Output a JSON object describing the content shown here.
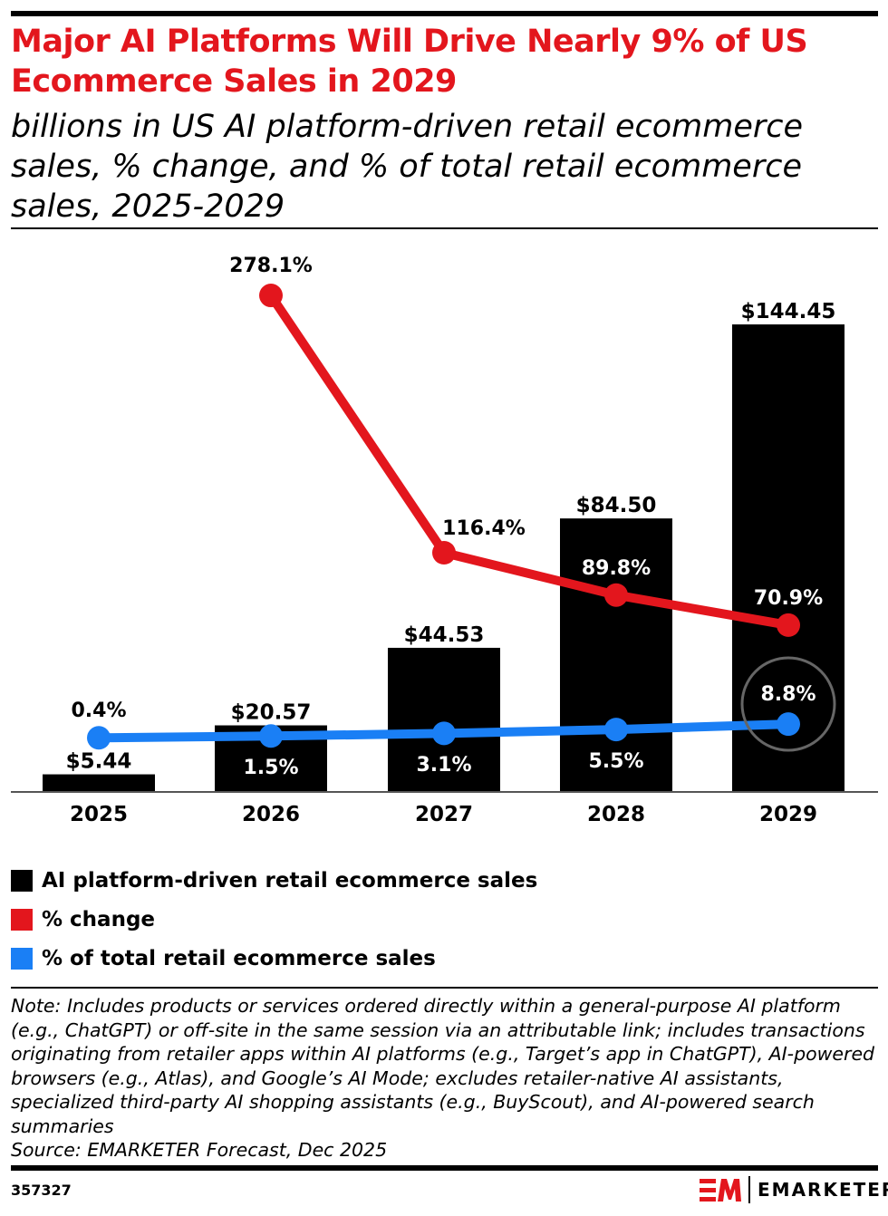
{
  "title": "Major AI Platforms Will Drive Nearly 9% of US Ecommerce Sales in 2029",
  "subtitle": "billions in US AI platform-driven retail ecommerce sales, % change, and % of total retail ecommerce sales, 2025-2029",
  "chart_data": {
    "type": "bar+line",
    "categories": [
      "2025",
      "2026",
      "2027",
      "2028",
      "2029"
    ],
    "series": [
      {
        "name": "AI platform-driven retail ecommerce sales",
        "type": "bar",
        "color": "#000000",
        "values": [
          5.44,
          20.57,
          44.53,
          84.5,
          144.45
        ],
        "labels": [
          "$5.44",
          "$20.57",
          "$44.53",
          "$84.50",
          "$144.45"
        ]
      },
      {
        "name": "% change",
        "type": "line",
        "color": "#e3161d",
        "values": [
          null,
          278.1,
          116.4,
          89.8,
          70.9
        ],
        "labels": [
          "",
          "278.1%",
          "116.4%",
          "89.8%",
          "70.9%"
        ]
      },
      {
        "name": "% of total retail ecommerce sales",
        "type": "line",
        "color": "#1a7ff5",
        "values": [
          0.4,
          1.5,
          3.1,
          5.5,
          8.8
        ],
        "labels": [
          "0.4%",
          "1.5%",
          "3.1%",
          "5.5%",
          "8.8%"
        ]
      }
    ],
    "highlight": "2029 % of total (circled)",
    "grid": false,
    "legend_placement": "bottom-left"
  },
  "note": "Note: Includes products or services ordered directly within a general-purpose AI platform (e.g., ChatGPT) or off-site in the same session via an attributable link; includes transactions originating from retailer apps within AI platforms (e.g., Target’s app in ChatGPT), AI-powered browsers (e.g., Atlas), and Google’s AI Mode; excludes retailer-native AI assistants, specialized third-party AI shopping assistants (e.g., BuyScout), and AI-powered search summaries",
  "source": "Source: EMARKETER Forecast, Dec 2025",
  "chart_id": "357327",
  "brand": {
    "logo_mark": "EM",
    "name": "EMARKETER",
    "color": "#e3161d"
  }
}
